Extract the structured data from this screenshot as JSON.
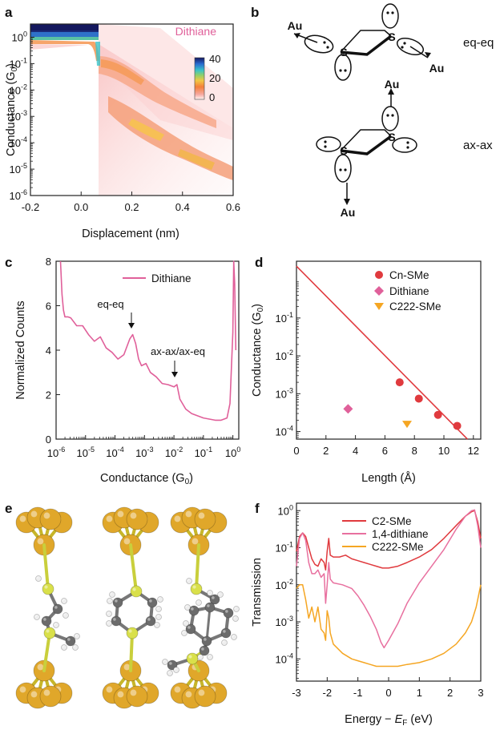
{
  "panels": {
    "a": "a",
    "b": "b",
    "c": "c",
    "d": "d",
    "e": "e",
    "f": "f"
  },
  "panel_b": {
    "au": "Au",
    "s": "S",
    "eq_label": "eq-eq",
    "ax_label": "ax-ax"
  },
  "chart_data": [
    {
      "id": "a",
      "type": "heatmap",
      "title": "Dithiane",
      "xlabel": "Displacement (nm)",
      "ylabel": "Conductance (G0)",
      "ylabel_main": "Conductance (G",
      "ylabel_sub": "0",
      "ylabel_end": ")",
      "xlim": [
        -0.2,
        0.6
      ],
      "ylim_log10": [
        -6,
        0.5
      ],
      "xticks": [
        "-0.2",
        "0.0",
        "0.2",
        "0.4",
        "0.6"
      ],
      "ytick_exponents": [
        "0",
        "-1",
        "-2",
        "-3",
        "-4",
        "-5",
        "-6"
      ],
      "colorbar": {
        "range": [
          0,
          40
        ],
        "ticks": [
          "40",
          "20",
          "0"
        ]
      },
      "bands": [
        {
          "label": "eq-eq",
          "center_log10": -3.3,
          "x_range": [
            0.0,
            0.45
          ]
        },
        {
          "label": "ax-ax/ax-eq",
          "center_log10": -1.9,
          "x_range": [
            0.0,
            0.3
          ]
        }
      ]
    },
    {
      "id": "c",
      "type": "line",
      "xlabel": "Conductance (G0)",
      "xlabel_main": "Conductance (G",
      "xlabel_sub": "0",
      "xlabel_end": ")",
      "ylabel": "Normalized Counts",
      "xlim_log10": [
        -6,
        0.2
      ],
      "ylim": [
        0,
        8
      ],
      "xtick_exponents": [
        "-6",
        "-5",
        "-4",
        "-3",
        "-2",
        "-1",
        "0"
      ],
      "yticks": [
        "0",
        "2",
        "4",
        "6",
        "8"
      ],
      "series": [
        {
          "name": "Dithiane",
          "color": "#e0609a",
          "x_log10": [
            -5.85,
            -5.8,
            -5.75,
            -5.7,
            -5.6,
            -5.5,
            -5.3,
            -5.1,
            -4.9,
            -4.7,
            -4.5,
            -4.3,
            -4.1,
            -3.9,
            -3.7,
            -3.5,
            -3.4,
            -3.3,
            -3.2,
            -3.1,
            -2.95,
            -2.8,
            -2.6,
            -2.4,
            -2.2,
            -2.0,
            -1.9,
            -1.8,
            -1.6,
            -1.4,
            -1.2,
            -1.0,
            -0.8,
            -0.6,
            -0.4,
            -0.2,
            -0.1,
            0.0,
            0.03,
            0.06,
            0.1
          ],
          "y": [
            8.0,
            6.5,
            5.8,
            5.5,
            5.5,
            5.45,
            5.1,
            5.1,
            4.7,
            4.4,
            4.6,
            4.1,
            3.9,
            3.6,
            3.8,
            4.5,
            4.7,
            4.3,
            3.6,
            3.3,
            3.4,
            3.0,
            2.8,
            2.5,
            2.45,
            2.35,
            2.45,
            1.8,
            1.35,
            1.15,
            1.05,
            0.95,
            0.9,
            0.85,
            0.85,
            0.95,
            1.6,
            4.8,
            8.0,
            7.0,
            4.0
          ]
        }
      ],
      "annotations": [
        {
          "text": "eq-eq",
          "x_log10": -3.3,
          "y": 4.7
        },
        {
          "text": "ax-ax/ax-eq",
          "x_log10": -1.95,
          "y": 2.5
        }
      ],
      "legend": "top-right"
    },
    {
      "id": "d",
      "type": "scatter",
      "xlabel": "Length (Å)",
      "ylabel": "Conductance (G0)",
      "ylabel_main": "Conductance (G",
      "ylabel_sub": "0",
      "ylabel_end": ")",
      "xlim": [
        0,
        12.5
      ],
      "ylim_log10": [
        -4.2,
        0.5
      ],
      "xticks": [
        "0",
        "2",
        "4",
        "6",
        "8",
        "10",
        "12"
      ],
      "ytick_exponents": [
        "-1",
        "-2",
        "-3",
        "-4"
      ],
      "series": [
        {
          "name": "Cn-SMe",
          "color": "#e03a3e",
          "marker": "circle",
          "x": [
            7.0,
            8.3,
            9.6,
            10.9
          ],
          "y_log10": [
            -2.7,
            -3.13,
            -3.56,
            -3.85
          ]
        },
        {
          "name": "Dithiane",
          "color": "#e0609a",
          "marker": "diamond",
          "x": [
            3.5
          ],
          "y_log10": [
            -3.4
          ]
        },
        {
          "name": "C222-SMe",
          "color": "#f5a623",
          "marker": "triangle-down",
          "x": [
            7.5
          ],
          "y_log10": [
            -3.8
          ]
        }
      ],
      "fit_line": {
        "color": "#e03a3e",
        "x": [
          0,
          11.6
        ],
        "y_log10": [
          0.37,
          -4.2
        ]
      },
      "legend": "top-right"
    },
    {
      "id": "f",
      "type": "line",
      "xlabel": "Energy − EF (eV)",
      "xlabel_main": "Energy − ",
      "xlabel_e": "E",
      "xlabel_f": "F",
      "xlabel_end": " (eV)",
      "ylabel": "Transmission",
      "xlim": [
        -3,
        3
      ],
      "ylim_log10": [
        -4.6,
        0.2
      ],
      "xticks": [
        "-3",
        "-2",
        "-1",
        "0",
        "1",
        "2",
        "3"
      ],
      "ytick_exponents": [
        "0",
        "-1",
        "-2",
        "-3",
        "-4"
      ],
      "series": [
        {
          "name": "C2-SMe",
          "color": "#e03a3e",
          "x": [
            -3.0,
            -2.9,
            -2.8,
            -2.7,
            -2.6,
            -2.5,
            -2.4,
            -2.3,
            -2.2,
            -2.1,
            -2.05,
            -2.0,
            -1.95,
            -1.9,
            -1.8,
            -1.6,
            -1.4,
            -1.2,
            -1.0,
            -0.8,
            -0.6,
            -0.4,
            -0.2,
            0.0,
            0.3,
            0.6,
            1.0,
            1.4,
            1.8,
            2.2,
            2.5,
            2.7,
            2.8,
            2.9,
            3.0
          ],
          "y_log10": [
            -1.1,
            -0.7,
            -0.6,
            -0.7,
            -1.0,
            -1.3,
            -1.45,
            -1.5,
            -1.3,
            -1.4,
            -1.6,
            -1.1,
            -0.75,
            -1.2,
            -1.25,
            -1.25,
            -1.2,
            -1.3,
            -1.35,
            -1.4,
            -1.45,
            -1.5,
            -1.55,
            -1.55,
            -1.5,
            -1.4,
            -1.25,
            -1.05,
            -0.75,
            -0.4,
            -0.15,
            -0.03,
            0.0,
            -0.3,
            -0.75
          ]
        },
        {
          "name": "1,4-dithiane",
          "color": "#e8709f",
          "x": [
            -3.0,
            -2.9,
            -2.8,
            -2.7,
            -2.6,
            -2.5,
            -2.4,
            -2.3,
            -2.2,
            -2.1,
            -2.05,
            -2.0,
            -1.95,
            -1.9,
            -1.8,
            -1.5,
            -1.2,
            -1.0,
            -0.8,
            -0.6,
            -0.4,
            -0.25,
            -0.15,
            0.0,
            0.3,
            0.6,
            1.0,
            1.4,
            1.8,
            2.2,
            2.5,
            2.7,
            2.8,
            2.9,
            3.0
          ],
          "y_log10": [
            -1.5,
            -0.75,
            -0.6,
            -0.8,
            -1.4,
            -1.7,
            -1.7,
            -1.6,
            -1.8,
            -1.7,
            -2.5,
            -2.0,
            -1.4,
            -1.85,
            -1.95,
            -2.0,
            -2.1,
            -2.3,
            -2.55,
            -2.85,
            -3.2,
            -3.55,
            -3.7,
            -3.5,
            -3.05,
            -2.5,
            -1.95,
            -1.5,
            -1.05,
            -0.5,
            -0.15,
            0.0,
            0.02,
            -0.4,
            -1.0
          ]
        },
        {
          "name": "C222-SMe",
          "color": "#f5a623",
          "x": [
            -3.0,
            -2.9,
            -2.8,
            -2.7,
            -2.6,
            -2.5,
            -2.4,
            -2.3,
            -2.2,
            -2.1,
            -2.05,
            -2.0,
            -1.95,
            -1.9,
            -1.8,
            -1.5,
            -1.2,
            -1.0,
            -0.8,
            -0.6,
            -0.4,
            -0.2,
            0.0,
            0.3,
            0.6,
            1.0,
            1.4,
            1.8,
            2.2,
            2.5,
            2.7,
            2.85,
            3.0
          ],
          "y_log10": [
            -2.1,
            -2.0,
            -2.0,
            -2.4,
            -2.9,
            -2.6,
            -3.0,
            -2.6,
            -3.2,
            -3.3,
            -3.5,
            -2.7,
            -2.9,
            -3.3,
            -3.6,
            -3.85,
            -4.0,
            -4.05,
            -4.1,
            -4.15,
            -4.2,
            -4.2,
            -4.2,
            -4.2,
            -4.15,
            -4.1,
            -4.0,
            -3.85,
            -3.6,
            -3.3,
            -3.0,
            -2.6,
            -2.0
          ]
        }
      ],
      "legend": "top-center"
    }
  ]
}
